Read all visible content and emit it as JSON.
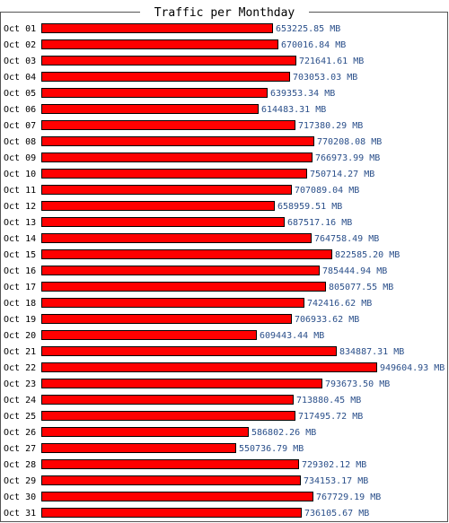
{
  "colors": {
    "bar": "#ff0000",
    "bar_border": "#000000",
    "value_text": "#2a4f8a",
    "frame": "#555555"
  },
  "chart_data": {
    "type": "bar",
    "orientation": "horizontal",
    "title": "Traffic per Monthday",
    "unit": "MB",
    "categories": [
      "Oct 01",
      "Oct 02",
      "Oct 03",
      "Oct 04",
      "Oct 05",
      "Oct 06",
      "Oct 07",
      "Oct 08",
      "Oct 09",
      "Oct 10",
      "Oct 11",
      "Oct 12",
      "Oct 13",
      "Oct 14",
      "Oct 15",
      "Oct 16",
      "Oct 17",
      "Oct 18",
      "Oct 19",
      "Oct 20",
      "Oct 21",
      "Oct 22",
      "Oct 23",
      "Oct 24",
      "Oct 25",
      "Oct 26",
      "Oct 27",
      "Oct 28",
      "Oct 29",
      "Oct 30",
      "Oct 31"
    ],
    "values": [
      653225.85,
      670016.84,
      721641.61,
      703053.03,
      639353.34,
      614483.31,
      717380.29,
      770208.08,
      766973.99,
      750714.27,
      707089.04,
      658959.51,
      687517.16,
      764758.49,
      822585.2,
      785444.94,
      805077.55,
      742416.62,
      706933.62,
      609443.44,
      834887.31,
      949604.93,
      793673.5,
      713880.45,
      717495.72,
      586802.26,
      550736.79,
      729302.12,
      734153.17,
      767729.19,
      736105.67
    ],
    "value_labels": [
      "653225.85 MB",
      "670016.84 MB",
      "721641.61 MB",
      "703053.03 MB",
      "639353.34 MB",
      "614483.31 MB",
      "717380.29 MB",
      "770208.08 MB",
      "766973.99 MB",
      "750714.27 MB",
      "707089.04 MB",
      "658959.51 MB",
      "687517.16 MB",
      "764758.49 MB",
      "822585.20 MB",
      "785444.94 MB",
      "805077.55 MB",
      "742416.62 MB",
      "706933.62 MB",
      "609443.44 MB",
      "834887.31 MB",
      "949604.93 MB",
      "793673.50 MB",
      "713880.45 MB",
      "717495.72 MB",
      "586802.26 MB",
      "550736.79 MB",
      "729302.12 MB",
      "734153.17 MB",
      "767729.19 MB",
      "736105.67 MB"
    ],
    "xlim": [
      0,
      949604.93
    ],
    "grid": false,
    "legend": "none"
  }
}
